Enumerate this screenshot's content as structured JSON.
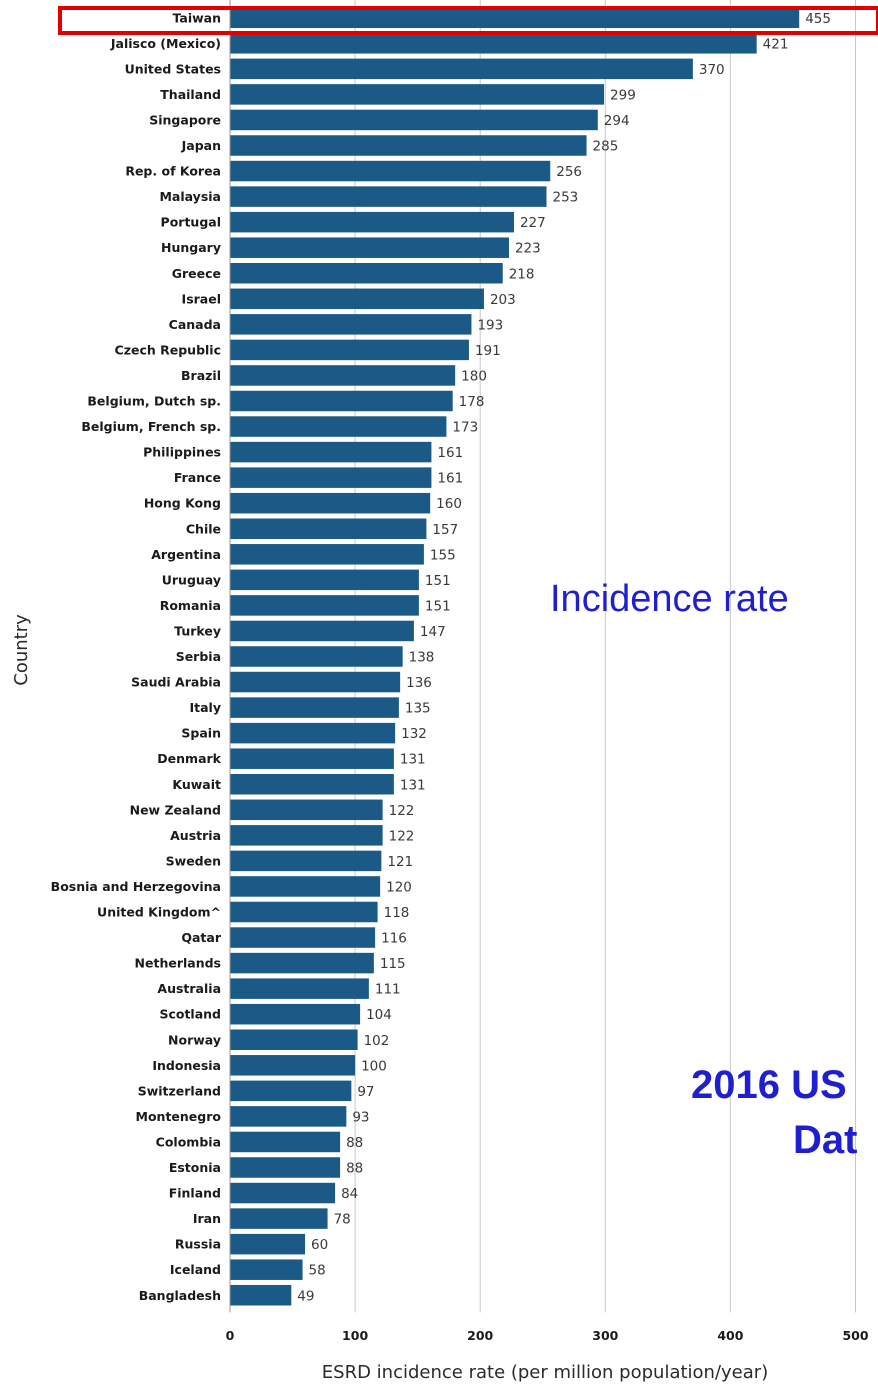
{
  "chart_data": {
    "type": "bar",
    "orientation": "horizontal",
    "categories": [
      "Taiwan",
      "Jalisco (Mexico)",
      "United States",
      "Thailand",
      "Singapore",
      "Japan",
      "Rep. of Korea",
      "Malaysia",
      "Portugal",
      "Hungary",
      "Greece",
      "Israel",
      "Canada",
      "Czech Republic",
      "Brazil",
      "Belgium, Dutch sp.",
      "Belgium, French sp.",
      "Philippines",
      "France",
      "Hong Kong",
      "Chile",
      "Argentina",
      "Uruguay",
      "Romania",
      "Turkey",
      "Serbia",
      "Saudi Arabia",
      "Italy",
      "Spain",
      "Denmark",
      "Kuwait",
      "New Zealand",
      "Austria",
      "Sweden",
      "Bosnia and Herzegovina",
      "United Kingdom^",
      "Qatar",
      "Netherlands",
      "Australia",
      "Scotland",
      "Norway",
      "Indonesia",
      "Switzerland",
      "Montenegro",
      "Colombia",
      "Estonia",
      "Finland",
      "Iran",
      "Russia",
      "Iceland",
      "Bangladesh"
    ],
    "values": [
      455,
      421,
      370,
      299,
      294,
      285,
      256,
      253,
      227,
      223,
      218,
      203,
      193,
      191,
      180,
      178,
      173,
      161,
      161,
      160,
      157,
      155,
      151,
      151,
      147,
      138,
      136,
      135,
      132,
      131,
      131,
      122,
      122,
      121,
      120,
      118,
      116,
      115,
      111,
      104,
      102,
      100,
      97,
      93,
      88,
      88,
      84,
      78,
      60,
      58,
      49
    ],
    "xlabel": "ESRD incidence rate (per million population/year)",
    "ylabel": "Country",
    "xlim": [
      0,
      500
    ],
    "xticks": [
      "0",
      "100",
      "200",
      "300",
      "400",
      "500"
    ],
    "grid": "vertical",
    "bar_color": "#1b5a86",
    "highlighted_category": "Taiwan",
    "highlight_color": "#e00000"
  },
  "annotations": {
    "incidence_text": "Incidence rate",
    "usrds_line1": "2016 US",
    "usrds_line2": "Dat",
    "text_color": "#1f1fd0"
  }
}
